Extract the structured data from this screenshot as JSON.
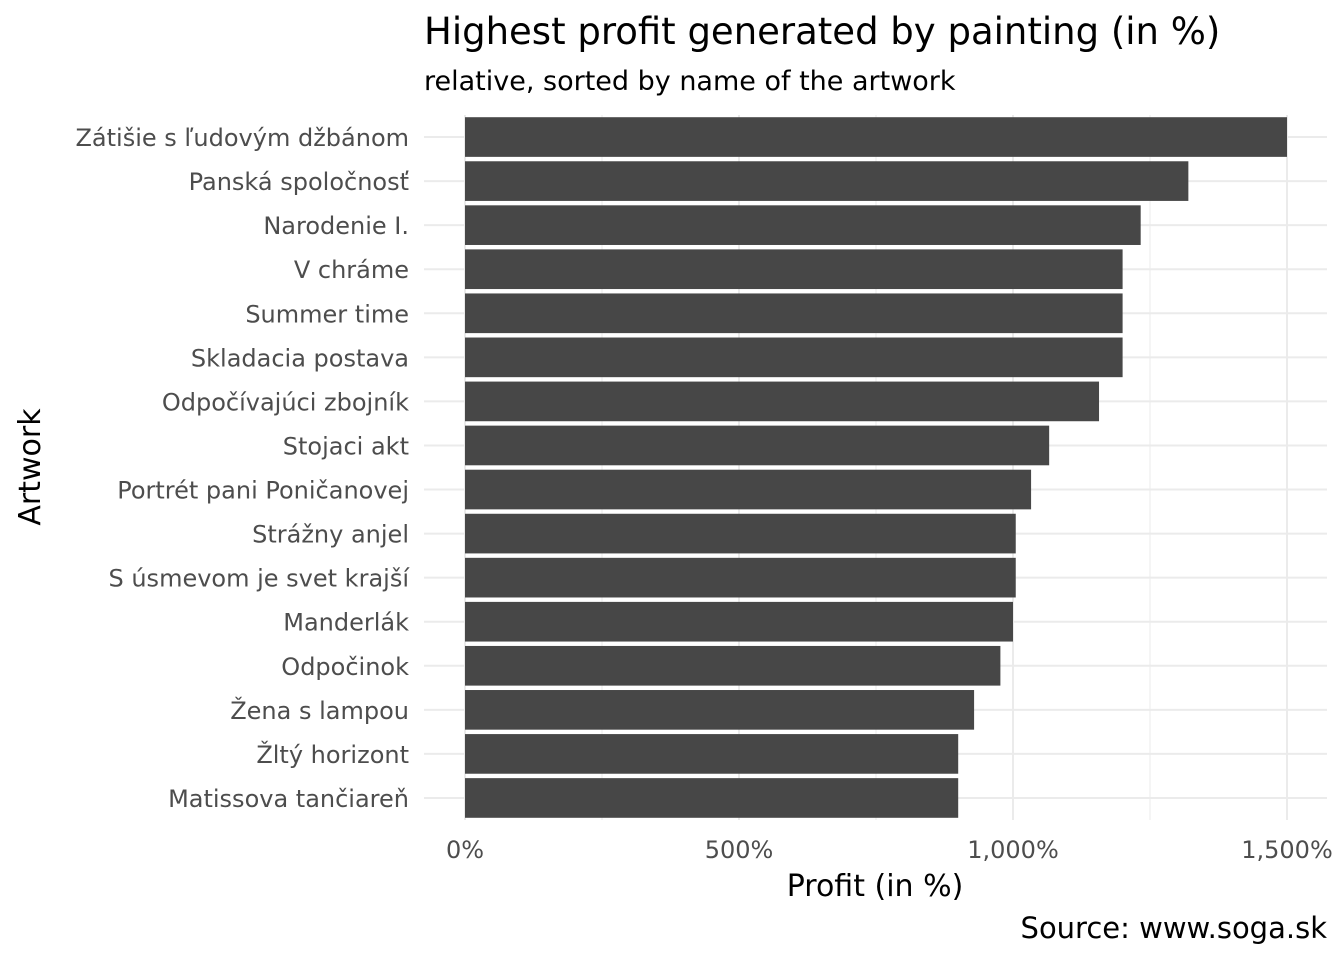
{
  "chart_data": {
    "type": "bar",
    "orientation": "horizontal",
    "title": "Highest profit generated by painting (in %)",
    "subtitle": "relative, sorted by name of the artwork",
    "xlabel": "Profit (in %)",
    "ylabel": "Artwork",
    "caption": "Source: www.soga.sk",
    "xlim": [
      0,
      1500
    ],
    "xticks": [
      0,
      500,
      1000,
      1500
    ],
    "xtick_labels": [
      "0%",
      "500%",
      "1,000%",
      "1,500%"
    ],
    "grid": true,
    "legend": "none",
    "categories": [
      "Zátišie s ľudovým džbánom",
      "Panská spoločnosť",
      "Narodenie I.",
      "V chráme",
      "Summer time",
      "Skladacia postava",
      "Odpočívajúci zbojník",
      "Stojaci akt",
      "Portrét pani Poničanovej",
      "Strážny anjel",
      "S úsmevom je svet krajší",
      "Manderlák",
      "Odpočinok",
      "Žena s lampou",
      "Žltý horizont",
      "Matissova tančiareň"
    ],
    "values": [
      1500,
      1320,
      1233,
      1200,
      1200,
      1200,
      1157,
      1066,
      1033,
      1005,
      1005,
      1000,
      977,
      929,
      900,
      900
    ],
    "colors": {
      "bar": "#474747",
      "grid_major": "#ebebeb",
      "grid_minor": "#ebebeb"
    }
  }
}
